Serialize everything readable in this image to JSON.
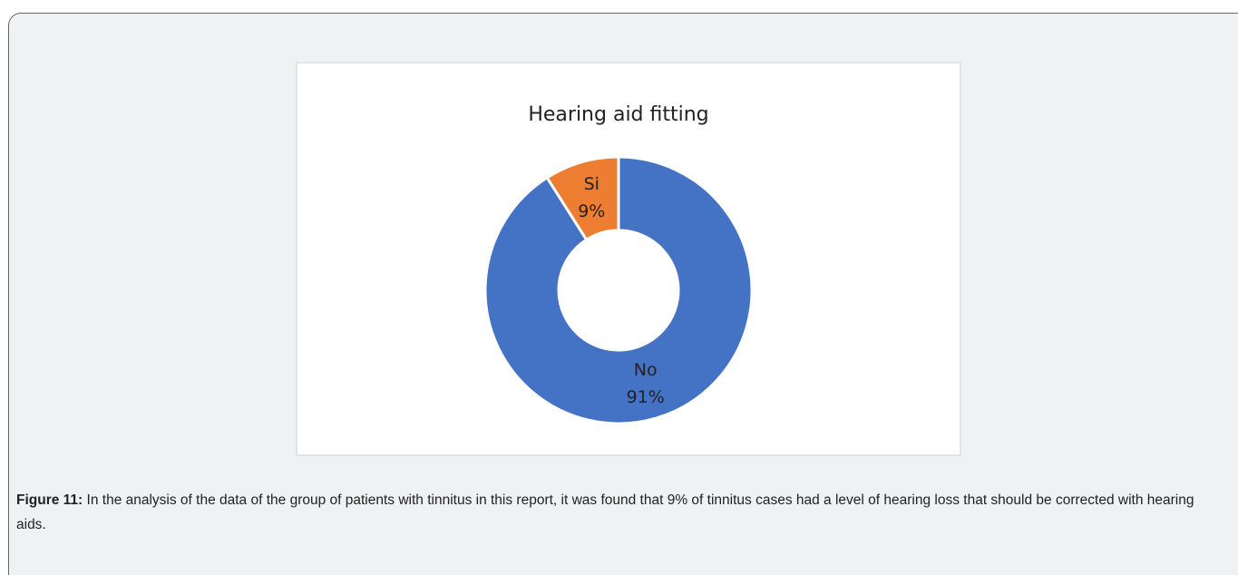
{
  "chart_data": {
    "type": "donut",
    "title": "Hearing aid fitting",
    "categories": [
      "No",
      "Si"
    ],
    "values": [
      91,
      9
    ],
    "value_labels": [
      "91%",
      "9%"
    ],
    "colors": [
      "#4472c4",
      "#ed7d31"
    ]
  },
  "caption": {
    "label": "Figure 11:",
    "text": "In the analysis of the data of the group of patients with tinnitus in this report, it was found that 9% of tinnitus cases had a level of hearing loss that should be corrected with hearing aids."
  }
}
